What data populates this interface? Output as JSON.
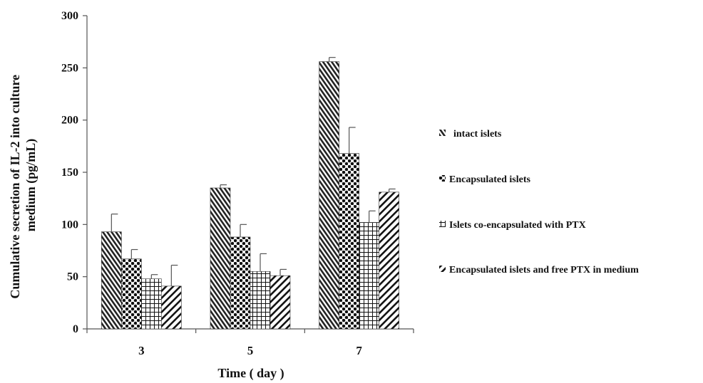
{
  "chart_data": {
    "type": "bar",
    "title": "",
    "xlabel": "Time ( day )",
    "ylabel_lines": [
      "Cumulative secretion of IL-2 into culture",
      "medium (pg/mL)"
    ],
    "ylim": [
      0,
      300
    ],
    "yticks": [
      "0",
      "50",
      "100",
      "150",
      "200",
      "250",
      "300"
    ],
    "categories": [
      "3",
      "5",
      "7"
    ],
    "series": [
      {
        "name": "intact islets",
        "values": [
          93,
          135,
          256
        ],
        "errors": [
          17,
          3,
          4
        ]
      },
      {
        "name": "Encapsulated islets",
        "values": [
          67,
          88,
          168
        ],
        "errors": [
          9,
          12,
          25
        ]
      },
      {
        "name": "Islets co-encapsulated with PTX",
        "values": [
          48,
          55,
          102
        ],
        "errors": [
          4,
          17,
          11
        ]
      },
      {
        "name": "Encapsulated islets and free PTX in medium",
        "values": [
          41,
          51,
          131
        ],
        "errors": [
          20,
          6,
          3
        ]
      }
    ],
    "grid": false,
    "legend_position": "right"
  }
}
